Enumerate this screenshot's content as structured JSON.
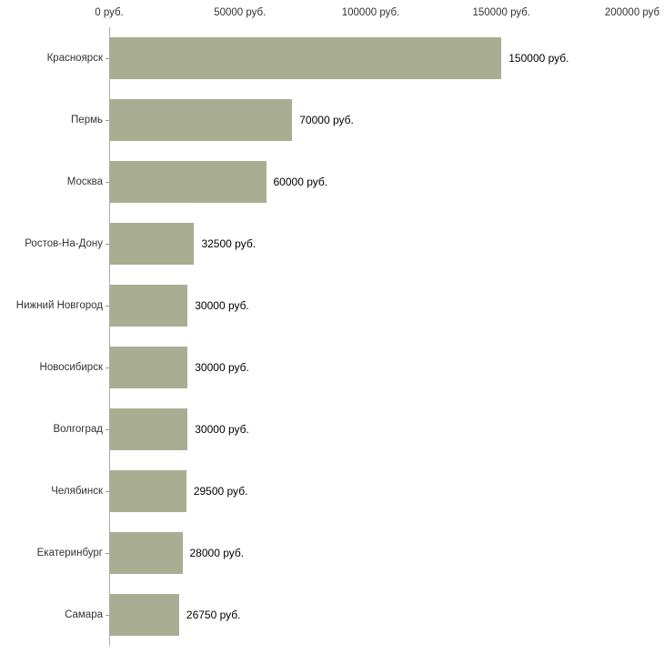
{
  "chart_data": {
    "type": "bar",
    "orientation": "horizontal",
    "title": "",
    "xlabel": "",
    "ylabel": "",
    "xlim": [
      0,
      200000
    ],
    "grid": "off",
    "legend": "none",
    "bar_color": "#a9ae93",
    "axis_color": "#9a9a9a",
    "text_color": "#333333",
    "x_ticks": [
      {
        "value": 0,
        "label": "0 руб."
      },
      {
        "value": 50000,
        "label": "50000 руб."
      },
      {
        "value": 100000,
        "label": "100000 руб."
      },
      {
        "value": 150000,
        "label": "150000 руб."
      },
      {
        "value": 200000,
        "label": "200000 руб"
      }
    ],
    "categories": [
      "Красноярск",
      "Пермь",
      "Москва",
      "Ростов-На-Дону",
      "Нижний Новгород",
      "Новосибирск",
      "Волгоград",
      "Челябинск",
      "Екатеринбург",
      "Самара"
    ],
    "values": [
      150000,
      70000,
      60000,
      32500,
      30000,
      30000,
      30000,
      29500,
      28000,
      26750
    ],
    "bars": [
      {
        "category": "Красноярск",
        "value": 150000,
        "label": "150000 руб."
      },
      {
        "category": "Пермь",
        "value": 70000,
        "label": "70000 руб."
      },
      {
        "category": "Москва",
        "value": 60000,
        "label": "60000 руб."
      },
      {
        "category": "Ростов-На-Дону",
        "value": 32500,
        "label": "32500 руб."
      },
      {
        "category": "Нижний Новгород",
        "value": 30000,
        "label": "30000 руб."
      },
      {
        "category": "Новосибирск",
        "value": 30000,
        "label": "30000 руб."
      },
      {
        "category": "Волгоград",
        "value": 30000,
        "label": "30000 руб."
      },
      {
        "category": "Челябинск",
        "value": 29500,
        "label": "29500 руб."
      },
      {
        "category": "Екатеринбург",
        "value": 28000,
        "label": "28000 руб."
      },
      {
        "category": "Самара",
        "value": 26750,
        "label": "26750 руб."
      }
    ]
  }
}
